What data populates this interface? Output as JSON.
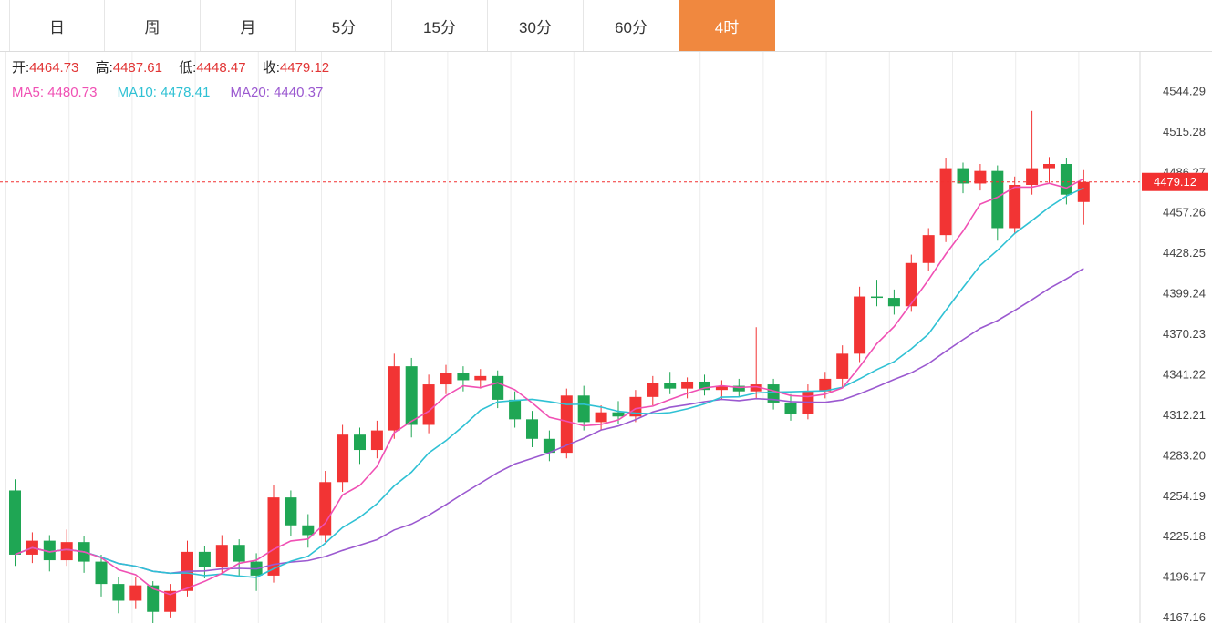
{
  "tabs": [
    {
      "label": "日",
      "active": false
    },
    {
      "label": "周",
      "active": false
    },
    {
      "label": "月",
      "active": false
    },
    {
      "label": "5分",
      "active": false
    },
    {
      "label": "15分",
      "active": false
    },
    {
      "label": "30分",
      "active": false
    },
    {
      "label": "60分",
      "active": false
    },
    {
      "label": "4时",
      "active": true
    }
  ],
  "legend": {
    "open_label": "开:",
    "open_value": "4464.73",
    "high_label": "高:",
    "high_value": "4487.61",
    "low_label": "低:",
    "low_value": "4448.47",
    "close_label": "收:",
    "close_value": "4479.12",
    "ma5_label": "MA5:",
    "ma5_value": "4480.73",
    "ma10_label": "MA10:",
    "ma10_value": "4478.41",
    "ma20_label": "MA20:",
    "ma20_value": "4440.37"
  },
  "colors": {
    "accent_tab": "#f0883f",
    "up": "#f23434",
    "down": "#1fa654",
    "ma5": "#f050b4",
    "ma10": "#2fc1d4",
    "ma20": "#9b59d0",
    "ohlc_value": "#e13535",
    "price_line": "#f23030",
    "axis_text": "#444",
    "grid": "#ececec",
    "axis_line": "#d9d9d9"
  },
  "chart_data": {
    "type": "candlestick",
    "timeframe_selected": "4时",
    "current_price": 4479.12,
    "current_price_label": "4479.12",
    "ma_periods": [
      5,
      10,
      20
    ],
    "ma_values": {
      "MA5": 4480.73,
      "MA10": 4478.41,
      "MA20": 4440.37
    },
    "last_candle": {
      "open": 4464.73,
      "high": 4487.61,
      "low": 4448.47,
      "close": 4479.12
    },
    "y_axis": {
      "labels": [
        "4544.29",
        "4515.28",
        "4486.27",
        "4457.26",
        "4428.25",
        "4399.24",
        "4370.23",
        "4341.22",
        "4312.21",
        "4283.20",
        "4254.19",
        "4225.18",
        "4196.17",
        "4167.16"
      ],
      "ylim": [
        4163.0,
        4572.3
      ],
      "grid": "vertical-only",
      "legend_position": "top-left"
    },
    "candles": [
      [
        4258,
        4266,
        4204,
        4212
      ],
      [
        4212,
        4228,
        4206,
        4222
      ],
      [
        4222,
        4226,
        4200,
        4208
      ],
      [
        4208,
        4230,
        4204,
        4221
      ],
      [
        4221,
        4225,
        4199,
        4207
      ],
      [
        4207,
        4212,
        4182,
        4191
      ],
      [
        4191,
        4196,
        4170,
        4179
      ],
      [
        4179,
        4196,
        4173,
        4190
      ],
      [
        4190,
        4193,
        4163,
        4171
      ],
      [
        4171,
        4191,
        4167,
        4186
      ],
      [
        4186,
        4222,
        4182,
        4214
      ],
      [
        4214,
        4218,
        4195,
        4203
      ],
      [
        4203,
        4226,
        4199,
        4219
      ],
      [
        4219,
        4223,
        4197,
        4207
      ],
      [
        4207,
        4213,
        4186,
        4197
      ],
      [
        4197,
        4262,
        4192,
        4253
      ],
      [
        4253,
        4258,
        4225,
        4233
      ],
      [
        4233,
        4241,
        4217,
        4226
      ],
      [
        4226,
        4272,
        4221,
        4264
      ],
      [
        4264,
        4305,
        4257,
        4298
      ],
      [
        4298,
        4303,
        4277,
        4287
      ],
      [
        4287,
        4308,
        4281,
        4301
      ],
      [
        4301,
        4356,
        4295,
        4347
      ],
      [
        4347,
        4353,
        4296,
        4305
      ],
      [
        4305,
        4341,
        4299,
        4334
      ],
      [
        4334,
        4348,
        4327,
        4342
      ],
      [
        4342,
        4347,
        4329,
        4337
      ],
      [
        4337,
        4345,
        4331,
        4340
      ],
      [
        4340,
        4344,
        4317,
        4323
      ],
      [
        4323,
        4329,
        4303,
        4309
      ],
      [
        4309,
        4315,
        4289,
        4295
      ],
      [
        4295,
        4301,
        4279,
        4285
      ],
      [
        4285,
        4331,
        4281,
        4326
      ],
      [
        4326,
        4333,
        4301,
        4307
      ],
      [
        4307,
        4319,
        4301,
        4314
      ],
      [
        4314,
        4322,
        4306,
        4311
      ],
      [
        4311,
        4330,
        4307,
        4325
      ],
      [
        4325,
        4340,
        4319,
        4335
      ],
      [
        4335,
        4343,
        4327,
        4331
      ],
      [
        4331,
        4339,
        4324,
        4336
      ],
      [
        4336,
        4341,
        4326,
        4330
      ],
      [
        4330,
        4337,
        4323,
        4333
      ],
      [
        4333,
        4338,
        4325,
        4329
      ],
      [
        4329,
        4375,
        4324,
        4334
      ],
      [
        4334,
        4338,
        4316,
        4321
      ],
      [
        4321,
        4327,
        4308,
        4313
      ],
      [
        4313,
        4334,
        4309,
        4329
      ],
      [
        4329,
        4343,
        4324,
        4338
      ],
      [
        4338,
        4362,
        4332,
        4356
      ],
      [
        4356,
        4404,
        4350,
        4397
      ],
      [
        4397,
        4409,
        4390,
        4396
      ],
      [
        4396,
        4402,
        4384,
        4390
      ],
      [
        4390,
        4427,
        4386,
        4421
      ],
      [
        4421,
        4446,
        4415,
        4441
      ],
      [
        4441,
        4496,
        4436,
        4489
      ],
      [
        4489,
        4493,
        4471,
        4478
      ],
      [
        4478,
        4492,
        4473,
        4487
      ],
      [
        4487,
        4491,
        4437,
        4446
      ],
      [
        4446,
        4483,
        4442,
        4477
      ],
      [
        4477,
        4530,
        4470,
        4489
      ],
      [
        4489,
        4497,
        4478,
        4492
      ],
      [
        4492,
        4496,
        4463,
        4470
      ],
      [
        4464.73,
        4487.61,
        4448.47,
        4479.12
      ]
    ]
  }
}
